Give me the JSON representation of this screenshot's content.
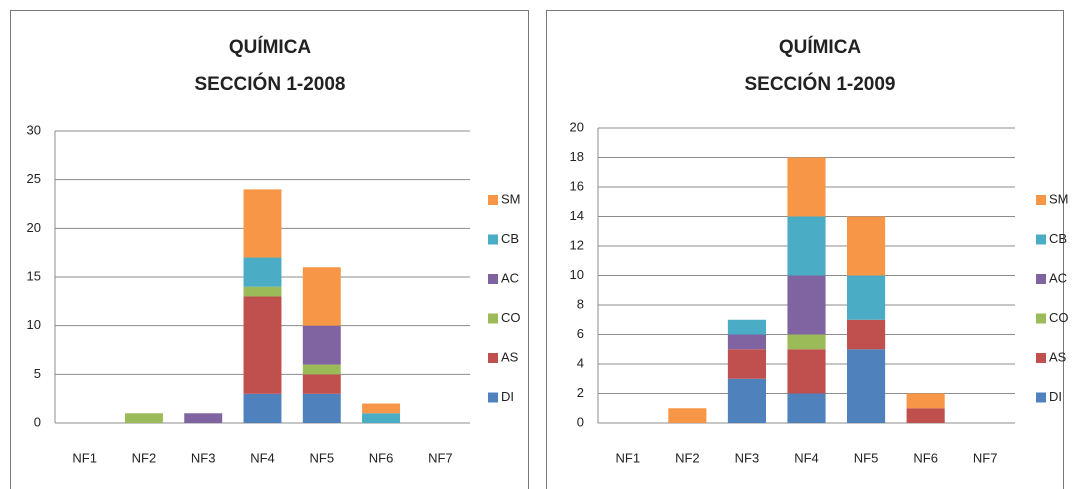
{
  "chart_data": [
    {
      "type": "bar",
      "stacked": true,
      "title": "QUÍMICA",
      "subtitle": "SECCIÓN 1-2008",
      "categories": [
        "NF1",
        "NF2",
        "NF3",
        "NF4",
        "NF5",
        "NF6",
        "NF7"
      ],
      "series": [
        {
          "name": "DI",
          "color": "#4f81bd",
          "values": [
            0,
            0,
            0,
            3,
            3,
            0,
            0
          ]
        },
        {
          "name": "AS",
          "color": "#c0504d",
          "values": [
            0,
            0,
            0,
            10,
            2,
            0,
            0
          ]
        },
        {
          "name": "CO",
          "color": "#9bbb59",
          "values": [
            0,
            1,
            0,
            1,
            1,
            0,
            0
          ]
        },
        {
          "name": "AC",
          "color": "#8064a2",
          "values": [
            0,
            0,
            1,
            0,
            4,
            0,
            0
          ]
        },
        {
          "name": "CB",
          "color": "#4bacc6",
          "values": [
            0,
            0,
            0,
            3,
            0,
            1,
            0
          ]
        },
        {
          "name": "SM",
          "color": "#f79646",
          "values": [
            0,
            0,
            0,
            7,
            6,
            1,
            0
          ]
        }
      ],
      "ylim": [
        0,
        30
      ],
      "yticks": [
        0,
        5,
        10,
        15,
        20,
        25,
        30
      ],
      "grid": true,
      "legend": "right"
    },
    {
      "type": "bar",
      "stacked": true,
      "title": "QUÍMICA",
      "subtitle": "SECCIÓN 1-2009",
      "categories": [
        "NF1",
        "NF2",
        "NF3",
        "NF4",
        "NF5",
        "NF6",
        "NF7"
      ],
      "series": [
        {
          "name": "DI",
          "color": "#4f81bd",
          "values": [
            0,
            0,
            3,
            2,
            5,
            0,
            0
          ]
        },
        {
          "name": "AS",
          "color": "#c0504d",
          "values": [
            0,
            0,
            2,
            3,
            2,
            1,
            0
          ]
        },
        {
          "name": "CO",
          "color": "#9bbb59",
          "values": [
            0,
            0,
            0,
            1,
            0,
            0,
            0
          ]
        },
        {
          "name": "AC",
          "color": "#8064a2",
          "values": [
            0,
            0,
            1,
            4,
            0,
            0,
            0
          ]
        },
        {
          "name": "CB",
          "color": "#4bacc6",
          "values": [
            0,
            0,
            1,
            4,
            3,
            0,
            0
          ]
        },
        {
          "name": "SM",
          "color": "#f79646",
          "values": [
            0,
            1,
            0,
            4,
            4,
            1,
            0
          ]
        }
      ],
      "ylim": [
        0,
        20
      ],
      "yticks": [
        0,
        2,
        4,
        6,
        8,
        10,
        12,
        14,
        16,
        18,
        20
      ],
      "grid": true,
      "legend": "right"
    }
  ]
}
